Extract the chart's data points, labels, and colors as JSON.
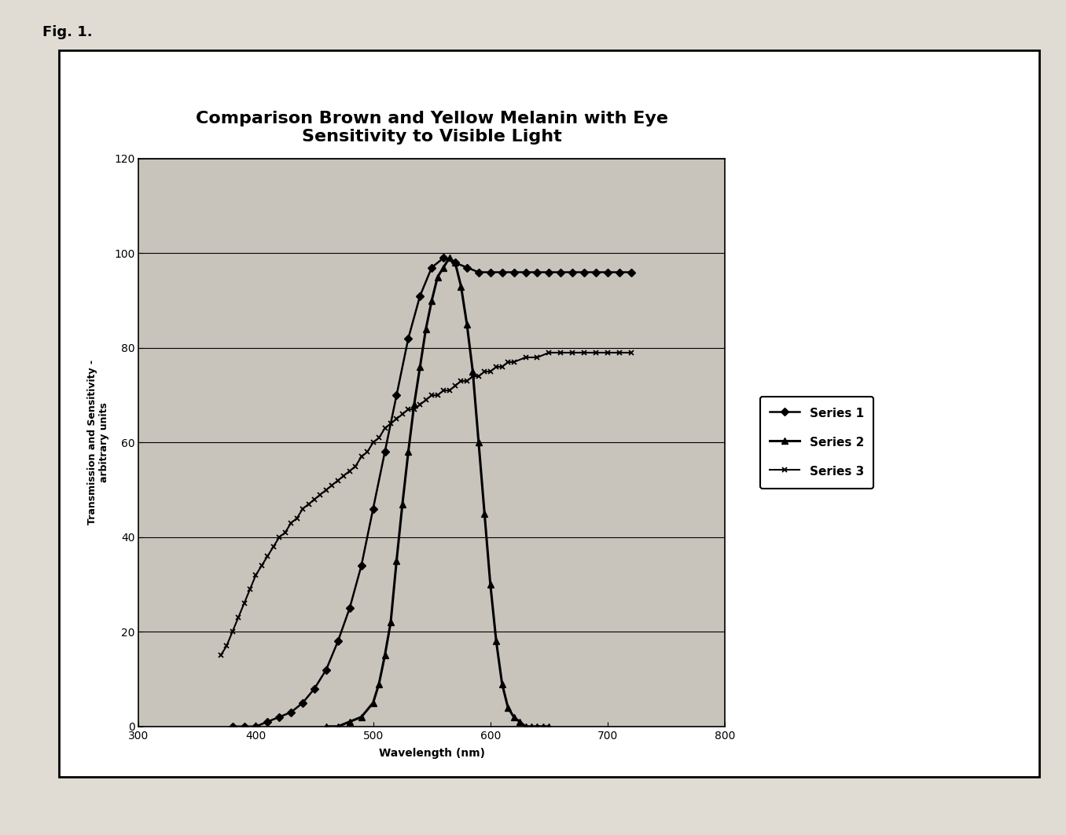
{
  "title": "Comparison Brown and Yellow Melanin with Eye\nSensitivity to Visible Light",
  "xlabel": "Wavelength (nm)",
  "ylabel": "Transmission and Sensitivity -\narbitrary units",
  "fig_label": "Fig. 1.",
  "xlim": [
    300,
    800
  ],
  "ylim": [
    0,
    120
  ],
  "xticks": [
    300,
    400,
    500,
    600,
    700,
    800
  ],
  "yticks": [
    0,
    20,
    40,
    60,
    80,
    100,
    120
  ],
  "series1_label": "Series 1",
  "series2_label": "Series 2",
  "series3_label": "Series 3",
  "outer_bg": "#ffffff",
  "page_bg": "#e8e4dc",
  "plot_bg": "#d4d0c8",
  "grid_color": "#000000",
  "title_fontsize": 16,
  "label_fontsize": 10,
  "tick_fontsize": 10,
  "legend_fontsize": 11,
  "series1": {
    "x": [
      380,
      390,
      400,
      410,
      420,
      430,
      440,
      450,
      460,
      470,
      480,
      490,
      500,
      510,
      520,
      530,
      540,
      550,
      560,
      570,
      580,
      590,
      600,
      610,
      620,
      630,
      640,
      650,
      660,
      670,
      680,
      690,
      700,
      710,
      720
    ],
    "y": [
      0,
      0,
      0,
      1,
      2,
      3,
      5,
      8,
      12,
      18,
      25,
      34,
      46,
      58,
      70,
      82,
      91,
      97,
      99,
      98,
      97,
      96,
      96,
      96,
      96,
      96,
      96,
      96,
      96,
      96,
      96,
      96,
      96,
      96,
      96
    ]
  },
  "series2": {
    "x": [
      460,
      470,
      480,
      490,
      500,
      505,
      510,
      515,
      520,
      525,
      530,
      535,
      540,
      545,
      550,
      555,
      560,
      565,
      570,
      575,
      580,
      585,
      590,
      595,
      600,
      605,
      610,
      615,
      620,
      625,
      630,
      635,
      640,
      645,
      650
    ],
    "y": [
      0,
      0,
      1,
      2,
      5,
      9,
      15,
      22,
      35,
      47,
      58,
      68,
      76,
      84,
      90,
      95,
      97,
      99,
      98,
      93,
      85,
      75,
      60,
      45,
      30,
      18,
      9,
      4,
      2,
      1,
      0,
      0,
      0,
      0,
      0
    ]
  },
  "series3": {
    "x": [
      370,
      375,
      380,
      385,
      390,
      395,
      400,
      405,
      410,
      415,
      420,
      425,
      430,
      435,
      440,
      445,
      450,
      455,
      460,
      465,
      470,
      475,
      480,
      485,
      490,
      495,
      500,
      505,
      510,
      515,
      520,
      525,
      530,
      535,
      540,
      545,
      550,
      555,
      560,
      565,
      570,
      575,
      580,
      585,
      590,
      595,
      600,
      605,
      610,
      615,
      620,
      630,
      640,
      650,
      660,
      670,
      680,
      690,
      700,
      710,
      720
    ],
    "y": [
      15,
      17,
      20,
      23,
      26,
      29,
      32,
      34,
      36,
      38,
      40,
      41,
      43,
      44,
      46,
      47,
      48,
      49,
      50,
      51,
      52,
      53,
      54,
      55,
      57,
      58,
      60,
      61,
      63,
      64,
      65,
      66,
      67,
      67,
      68,
      69,
      70,
      70,
      71,
      71,
      72,
      73,
      73,
      74,
      74,
      75,
      75,
      76,
      76,
      77,
      77,
      78,
      78,
      79,
      79,
      79,
      79,
      79,
      79,
      79,
      79
    ]
  }
}
